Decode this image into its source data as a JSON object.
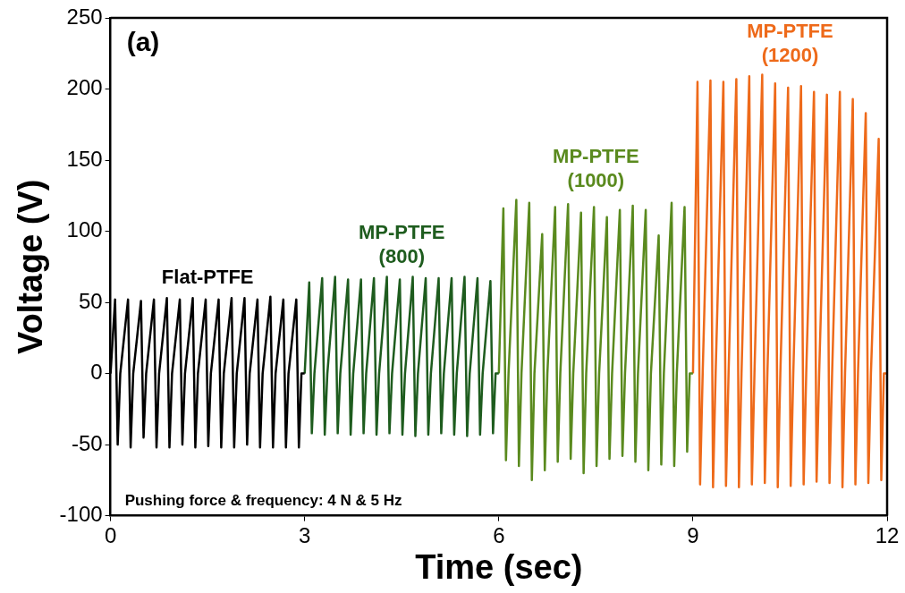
{
  "chart_data": {
    "type": "line",
    "xlabel": "Time (sec)",
    "ylabel": "Voltage (V)",
    "xlim": [
      0,
      12
    ],
    "xticks": [
      0,
      3,
      6,
      9,
      12
    ],
    "ylim": [
      -100,
      250
    ],
    "yticks": [
      -100,
      -50,
      0,
      50,
      100,
      150,
      200,
      250
    ],
    "marker": "none",
    "annotations": [
      "(a)",
      "Pushing force & frequency: 4 N & 5 Hz"
    ],
    "series": [
      {
        "name": "Flat-PTFE",
        "color": "#000000",
        "x": [
          0,
          0.07,
          0.11,
          0.15,
          0.27,
          0.31,
          0.35,
          0.47,
          0.51,
          0.55,
          0.67,
          0.71,
          0.75,
          0.87,
          0.91,
          0.95,
          1.07,
          1.11,
          1.15,
          1.27,
          1.31,
          1.35,
          1.47,
          1.51,
          1.55,
          1.67,
          1.71,
          1.75,
          1.87,
          1.91,
          1.95,
          2.07,
          2.11,
          2.15,
          2.27,
          2.31,
          2.35,
          2.47,
          2.51,
          2.55,
          2.67,
          2.71,
          2.75,
          2.87,
          2.91,
          2.95,
          3
        ],
        "values": [
          0,
          52,
          -50,
          0,
          52,
          -52,
          0,
          51,
          -45,
          0,
          52,
          -52,
          0,
          53,
          -52,
          0,
          52,
          -50,
          0,
          53,
          -52,
          0,
          52,
          -51,
          0,
          52,
          -52,
          0,
          53,
          -52,
          0,
          53,
          -50,
          0,
          52,
          -52,
          0,
          54,
          -52,
          0,
          52,
          -52,
          0,
          52,
          -52,
          0,
          0
        ]
      },
      {
        "name": "MP-PTFE (800)",
        "color": "#1e5c1e",
        "x": [
          3,
          3.07,
          3.11,
          3.15,
          3.27,
          3.31,
          3.35,
          3.47,
          3.51,
          3.55,
          3.67,
          3.71,
          3.75,
          3.87,
          3.91,
          3.95,
          4.07,
          4.11,
          4.15,
          4.27,
          4.31,
          4.35,
          4.47,
          4.51,
          4.55,
          4.67,
          4.71,
          4.75,
          4.87,
          4.91,
          4.95,
          5.07,
          5.11,
          5.15,
          5.27,
          5.31,
          5.35,
          5.47,
          5.51,
          5.55,
          5.67,
          5.71,
          5.75,
          5.87,
          5.91,
          5.95,
          6
        ],
        "values": [
          0,
          64,
          -42,
          0,
          67,
          -43,
          0,
          68,
          -42,
          0,
          66,
          -43,
          0,
          66,
          -42,
          0,
          67,
          -43,
          0,
          68,
          -42,
          0,
          66,
          -43,
          0,
          68,
          -44,
          0,
          67,
          -43,
          0,
          67,
          -42,
          0,
          67,
          -43,
          0,
          68,
          -44,
          0,
          67,
          -43,
          0,
          65,
          -42,
          0,
          0
        ]
      },
      {
        "name": "MP-PTFE (1000)",
        "color": "#5a8a1e",
        "x": [
          6,
          6.07,
          6.11,
          6.15,
          6.27,
          6.31,
          6.35,
          6.47,
          6.51,
          6.55,
          6.67,
          6.71,
          6.75,
          6.87,
          6.91,
          6.95,
          7.07,
          7.11,
          7.15,
          7.27,
          7.31,
          7.35,
          7.47,
          7.51,
          7.55,
          7.67,
          7.71,
          7.75,
          7.87,
          7.91,
          7.95,
          8.07,
          8.11,
          8.15,
          8.27,
          8.31,
          8.35,
          8.47,
          8.51,
          8.55,
          8.67,
          8.71,
          8.75,
          8.87,
          8.91,
          8.95,
          9
        ],
        "values": [
          0,
          116,
          -61,
          0,
          122,
          -65,
          0,
          120,
          -75,
          0,
          98,
          -68,
          0,
          117,
          -62,
          0,
          119,
          -60,
          0,
          113,
          -70,
          0,
          117,
          -65,
          0,
          110,
          -60,
          0,
          115,
          -58,
          0,
          118,
          -62,
          0,
          115,
          -68,
          0,
          97,
          -64,
          0,
          120,
          -65,
          0,
          117,
          -55,
          0,
          0
        ]
      },
      {
        "name": "MP-PTFE (1200)",
        "color": "#ee6a1a",
        "x": [
          9,
          9.07,
          9.11,
          9.15,
          9.27,
          9.31,
          9.35,
          9.47,
          9.51,
          9.55,
          9.67,
          9.71,
          9.75,
          9.87,
          9.91,
          9.95,
          10.07,
          10.11,
          10.15,
          10.27,
          10.31,
          10.35,
          10.47,
          10.51,
          10.55,
          10.67,
          10.71,
          10.75,
          10.87,
          10.91,
          10.95,
          11.07,
          11.11,
          11.15,
          11.27,
          11.31,
          11.35,
          11.47,
          11.51,
          11.55,
          11.67,
          11.71,
          11.75,
          11.87,
          11.91,
          11.95,
          12
        ],
        "values": [
          0,
          205,
          -78,
          0,
          206,
          -80,
          0,
          205,
          -79,
          0,
          207,
          -80,
          0,
          209,
          -78,
          0,
          210,
          -77,
          0,
          204,
          -80,
          0,
          201,
          -79,
          0,
          202,
          -78,
          0,
          198,
          -76,
          0,
          196,
          -77,
          0,
          198,
          -80,
          0,
          193,
          -78,
          0,
          183,
          -77,
          0,
          165,
          -75,
          0,
          0
        ]
      }
    ]
  }
}
